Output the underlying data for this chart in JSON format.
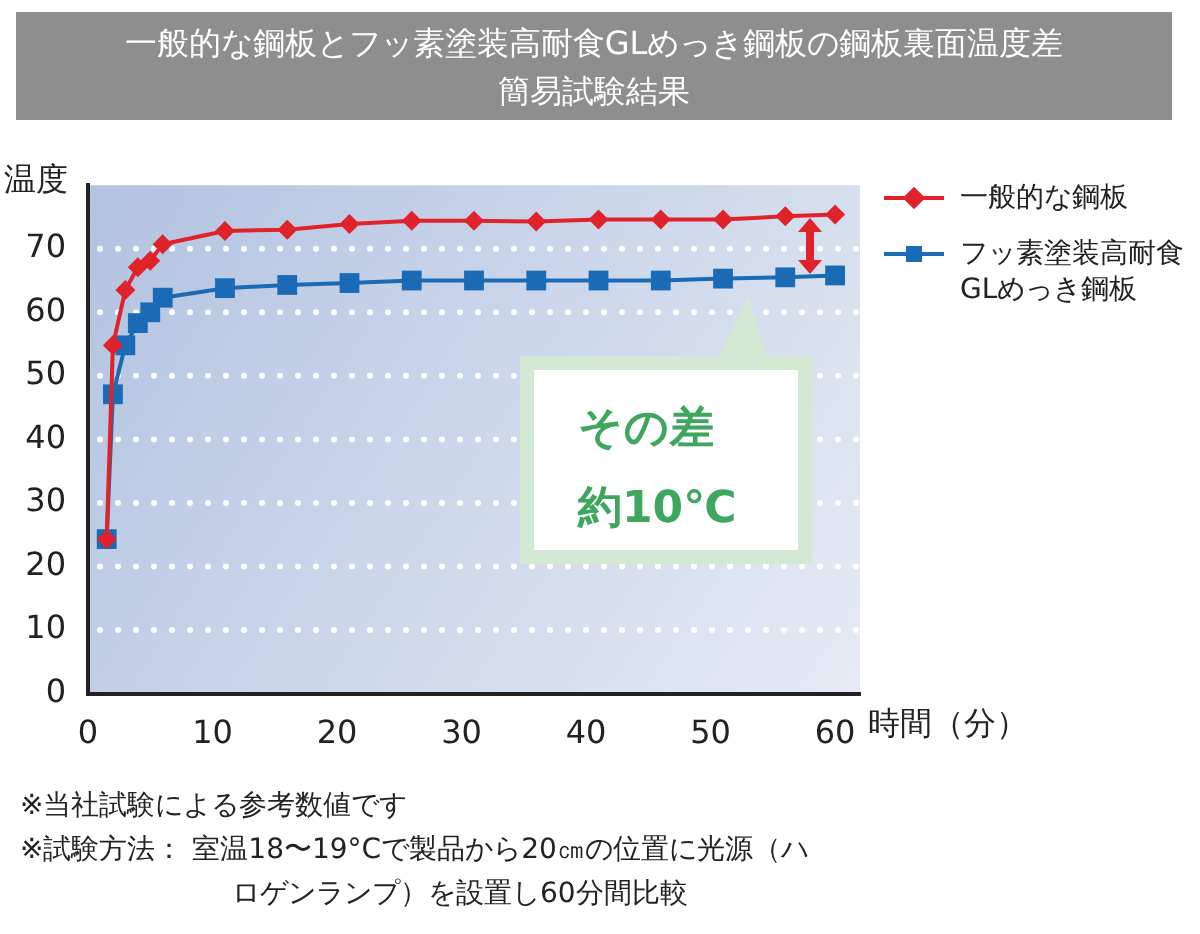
{
  "chart_data": {
    "type": "line",
    "title": "一般的な鋼板とフッ素塗装高耐食GLめっき鋼板の鋼板裏面温度差簡易試験結果",
    "xlabel": "時間（分）",
    "ylabel": "温度",
    "x": [
      1.5,
      2,
      3,
      4,
      5,
      6,
      11,
      16,
      21,
      26,
      31,
      36,
      41,
      46,
      51,
      56,
      60
    ],
    "series": [
      {
        "name": "一般的な鋼板",
        "color": "#e0232a",
        "marker": "diamond",
        "values": [
          24.3,
          54.8,
          63.5,
          67.1,
          68.1,
          70.7,
          72.8,
          73.0,
          73.9,
          74.4,
          74.4,
          74.3,
          74.6,
          74.6,
          74.6,
          75.1,
          75.4
        ]
      },
      {
        "name": "フッ素塗装高耐食\nGLめっき鋼板",
        "color": "#1a6ab5",
        "marker": "square",
        "values": [
          24.3,
          47.1,
          54.8,
          58.3,
          60.0,
          62.3,
          63.8,
          64.3,
          64.6,
          65.0,
          65.0,
          65.0,
          65.0,
          65.0,
          65.3,
          65.5,
          65.8
        ]
      }
    ],
    "xlim": [
      0,
      62
    ],
    "xticks": [
      0,
      10,
      20,
      30,
      40,
      50,
      60
    ],
    "ylim": [
      0,
      80
    ],
    "yticks": [
      0,
      10,
      20,
      30,
      40,
      50,
      60,
      70
    ],
    "grid": "y",
    "legend": "right",
    "line_style": "solid",
    "annotations": [
      "その差約10℃",
      "※当社試験による参考数値です",
      "※試験方法： 室温18〜19°Cで製品から20㎝の位置に光源（ハロゲンランプ）を設置し60分間比較"
    ]
  }
}
